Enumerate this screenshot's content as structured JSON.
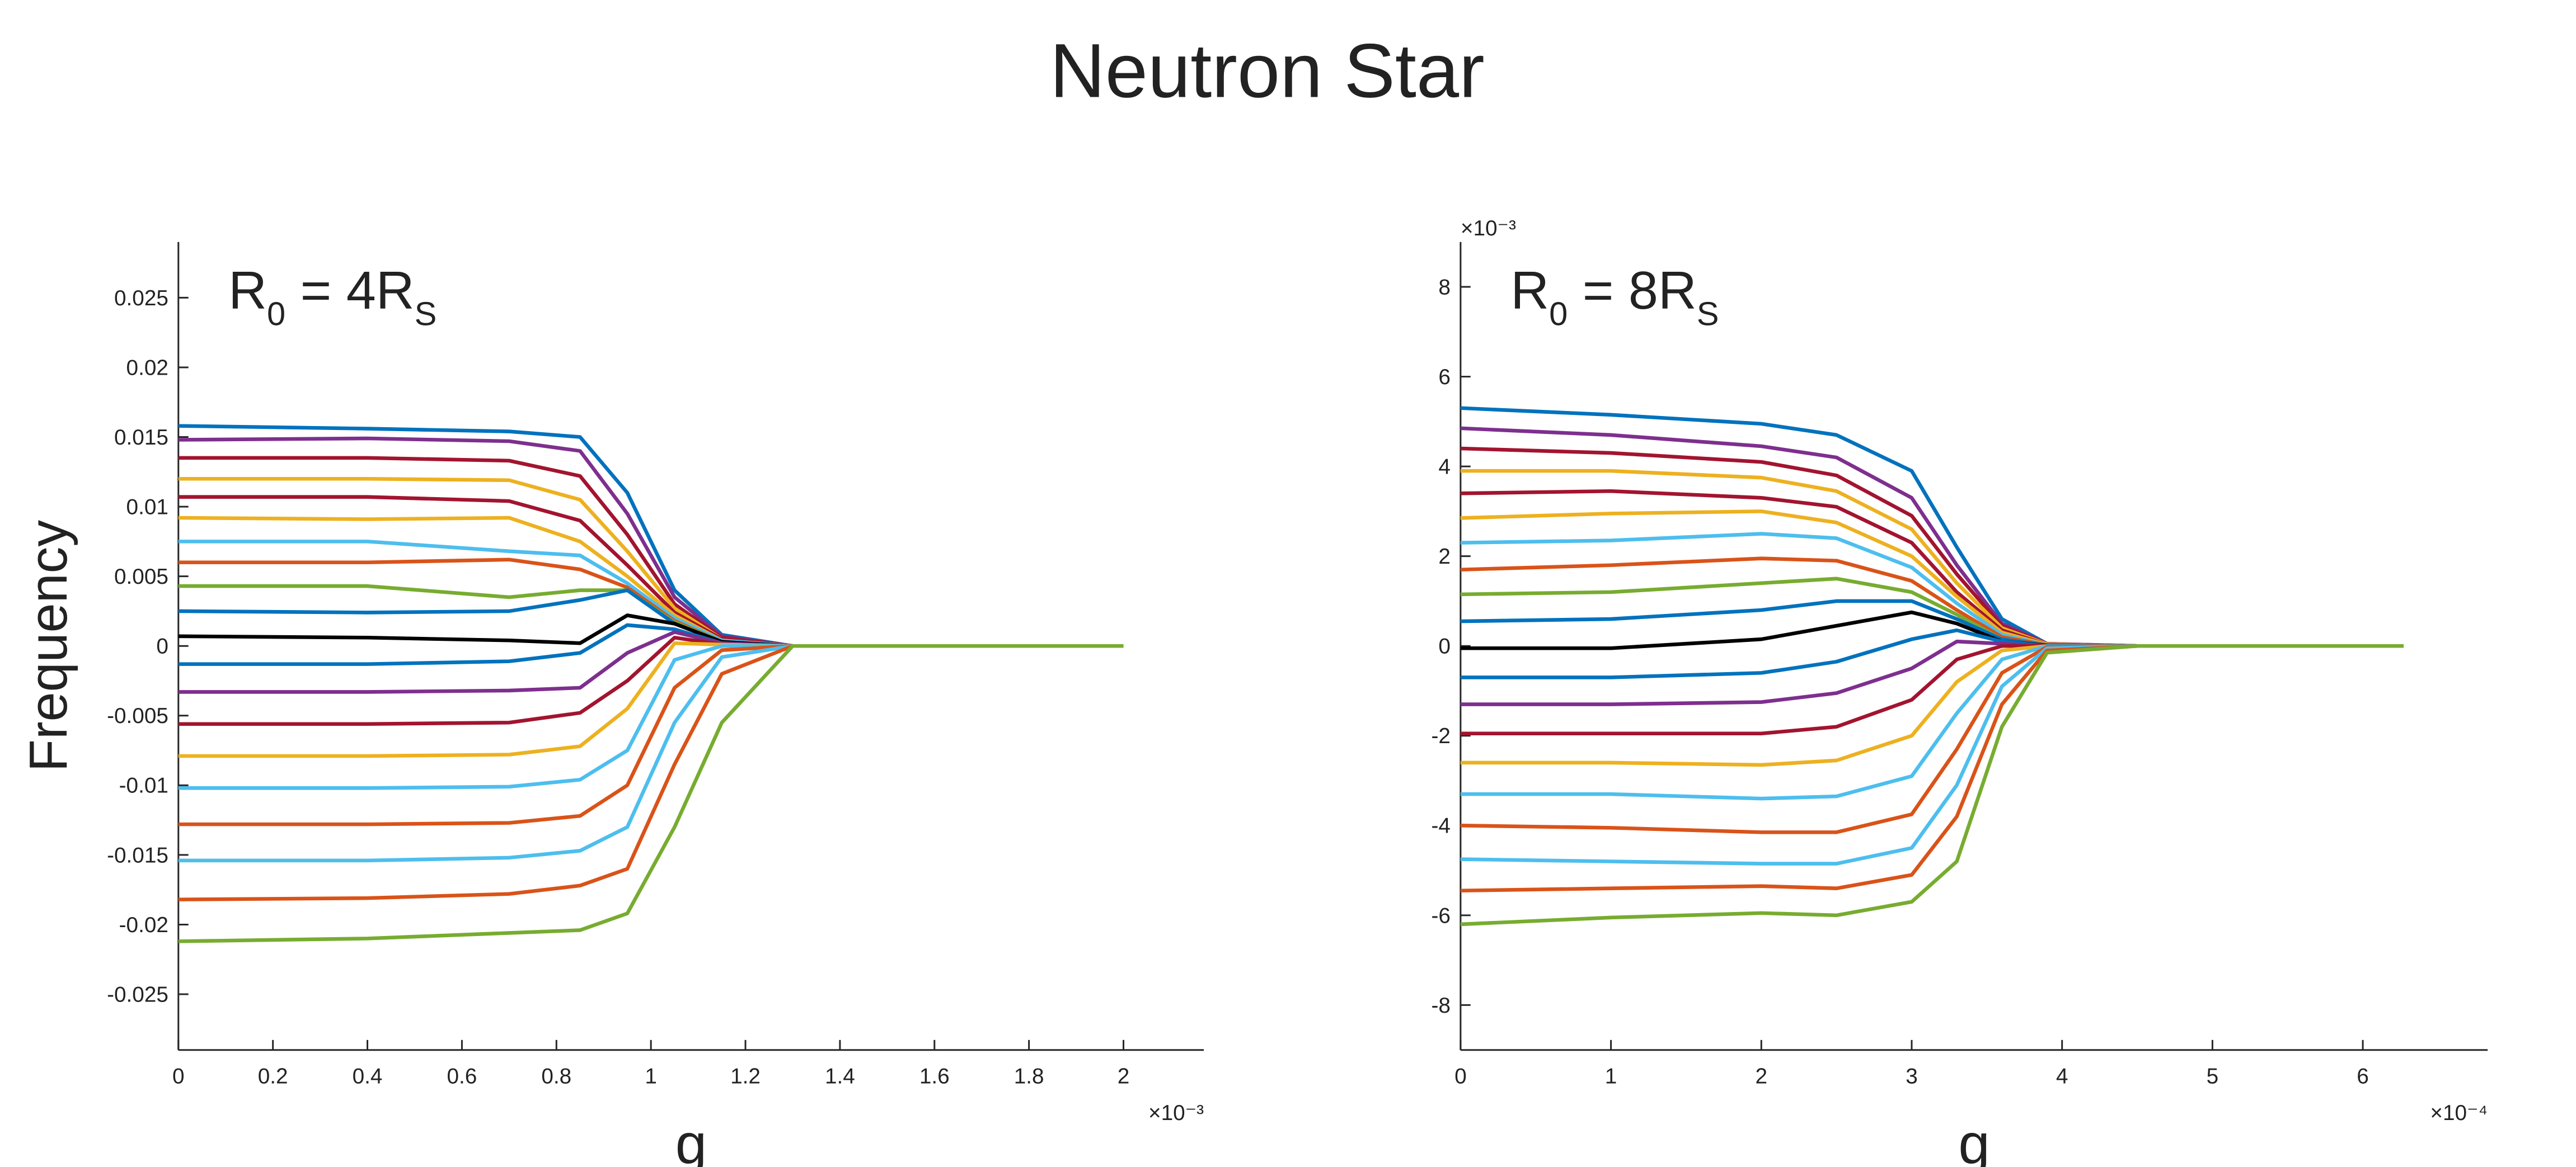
{
  "title": "Neutron Star",
  "chart_data": [
    {
      "type": "line",
      "ylabel": "Frequency",
      "xlabel": "g",
      "annotation": [
        "R",
        "0",
        " = 4R",
        "S"
      ],
      "x_exponent": "×10⁻³",
      "xlim": [
        0,
        2.17
      ],
      "xticks": [
        0,
        0.2,
        0.4,
        0.6,
        0.8,
        1,
        1.2,
        1.4,
        1.6,
        1.8,
        2
      ],
      "ylim": [
        -0.029,
        0.029
      ],
      "yticks": [
        -0.025,
        -0.02,
        -0.015,
        -0.01,
        -0.005,
        0,
        0.005,
        0.01,
        0.015,
        0.02,
        0.025
      ],
      "grid": false,
      "x": [
        0,
        0.4,
        0.7,
        0.85,
        0.95,
        1.05,
        1.15,
        1.3,
        1.6,
        2.0
      ],
      "series": [
        {
          "color": "#0072BD",
          "values": [
            0.0158,
            0.0156,
            0.0154,
            0.015,
            0.011,
            0.004,
            0.0008,
            0,
            0,
            0
          ]
        },
        {
          "color": "#7E2F8E",
          "values": [
            0.0148,
            0.0149,
            0.0147,
            0.014,
            0.0095,
            0.0035,
            0.0007,
            0,
            0,
            0
          ]
        },
        {
          "color": "#A2142F",
          "values": [
            0.0135,
            0.0135,
            0.0133,
            0.0122,
            0.008,
            0.003,
            0.0006,
            0,
            0,
            0
          ]
        },
        {
          "color": "#EDB120",
          "values": [
            0.012,
            0.012,
            0.0119,
            0.0105,
            0.0068,
            0.0027,
            0.0005,
            0,
            0,
            0
          ]
        },
        {
          "color": "#A2142F",
          "values": [
            0.0107,
            0.0107,
            0.0104,
            0.009,
            0.0058,
            0.0024,
            0.0005,
            0,
            0,
            0
          ]
        },
        {
          "color": "#EDB120",
          "values": [
            0.0092,
            0.0091,
            0.0092,
            0.0075,
            0.005,
            0.0022,
            0.0004,
            0,
            0,
            0
          ]
        },
        {
          "color": "#4DBEEE",
          "values": [
            0.0075,
            0.0075,
            0.0068,
            0.0065,
            0.0045,
            0.002,
            0.0004,
            0,
            0,
            0
          ]
        },
        {
          "color": "#D95319",
          "values": [
            0.006,
            0.006,
            0.0062,
            0.0055,
            0.0042,
            0.0018,
            0.0003,
            0,
            0,
            0
          ]
        },
        {
          "color": "#77AC30",
          "values": [
            0.0043,
            0.0043,
            0.0035,
            0.004,
            0.004,
            0.0017,
            0.0003,
            0,
            0,
            0
          ]
        },
        {
          "color": "#0072BD",
          "values": [
            0.0025,
            0.0024,
            0.0025,
            0.0033,
            0.004,
            0.0016,
            0.0003,
            0,
            0,
            0
          ]
        },
        {
          "color": "#000000",
          "values": [
            0.0007,
            0.0006,
            0.0004,
            0.0002,
            0.0022,
            0.0016,
            0.0003,
            0,
            0,
            0
          ]
        },
        {
          "color": "#0072BD",
          "values": [
            -0.0013,
            -0.0013,
            -0.0011,
            -0.0005,
            0.0015,
            0.0012,
            0.0002,
            0,
            0,
            0
          ]
        },
        {
          "color": "#7E2F8E",
          "values": [
            -0.0033,
            -0.0033,
            -0.0032,
            -0.003,
            -0.0005,
            0.001,
            0.0002,
            0,
            0,
            0
          ]
        },
        {
          "color": "#A2142F",
          "values": [
            -0.0056,
            -0.0056,
            -0.0055,
            -0.0048,
            -0.0025,
            0.0006,
            0.0001,
            0,
            0,
            0
          ]
        },
        {
          "color": "#EDB120",
          "values": [
            -0.0079,
            -0.0079,
            -0.0078,
            -0.0072,
            -0.0045,
            0.0002,
            0.0001,
            0,
            0,
            0
          ]
        },
        {
          "color": "#4DBEEE",
          "values": [
            -0.0102,
            -0.0102,
            -0.0101,
            -0.0096,
            -0.0075,
            -0.001,
            0,
            0,
            0,
            0
          ]
        },
        {
          "color": "#D95319",
          "values": [
            -0.0128,
            -0.0128,
            -0.0127,
            -0.0122,
            -0.01,
            -0.003,
            -0.0003,
            0,
            0,
            0
          ]
        },
        {
          "color": "#4DBEEE",
          "values": [
            -0.0154,
            -0.0154,
            -0.0152,
            -0.0147,
            -0.013,
            -0.0055,
            -0.0008,
            0,
            0,
            0
          ]
        },
        {
          "color": "#D95319",
          "values": [
            -0.0182,
            -0.0181,
            -0.0178,
            -0.0172,
            -0.016,
            -0.0085,
            -0.002,
            0,
            0,
            0
          ]
        },
        {
          "color": "#77AC30",
          "values": [
            -0.0212,
            -0.021,
            -0.0206,
            -0.0204,
            -0.0192,
            -0.013,
            -0.0055,
            0,
            0,
            0
          ]
        }
      ]
    },
    {
      "type": "line",
      "xlabel": "g",
      "annotation": [
        "R",
        "0",
        " = 8R",
        "S"
      ],
      "x_exponent": "×10⁻⁴",
      "y_exponent": "×10⁻³",
      "xlim": [
        0,
        6.83
      ],
      "xticks": [
        0,
        1,
        2,
        3,
        4,
        5,
        6
      ],
      "ylim": [
        -9,
        9
      ],
      "yticks": [
        -8,
        -6,
        -4,
        -2,
        0,
        2,
        4,
        6,
        8
      ],
      "grid": false,
      "x": [
        0,
        1,
        2,
        2.5,
        3,
        3.3,
        3.6,
        3.9,
        4.5,
        6.27
      ],
      "series": [
        {
          "color": "#0072BD",
          "values": [
            5.3,
            5.15,
            4.95,
            4.7,
            3.9,
            2.2,
            0.6,
            0.05,
            0,
            0
          ]
        },
        {
          "color": "#7E2F8E",
          "values": [
            4.85,
            4.7,
            4.45,
            4.2,
            3.3,
            1.8,
            0.5,
            0.05,
            0,
            0
          ]
        },
        {
          "color": "#A2142F",
          "values": [
            4.4,
            4.3,
            4.1,
            3.8,
            2.9,
            1.6,
            0.45,
            0.04,
            0,
            0
          ]
        },
        {
          "color": "#EDB120",
          "values": [
            3.9,
            3.9,
            3.75,
            3.45,
            2.6,
            1.4,
            0.4,
            0.04,
            0,
            0
          ]
        },
        {
          "color": "#A2142F",
          "values": [
            3.4,
            3.45,
            3.3,
            3.1,
            2.3,
            1.2,
            0.35,
            0.03,
            0,
            0
          ]
        },
        {
          "color": "#EDB120",
          "values": [
            2.85,
            2.95,
            3.0,
            2.75,
            2.0,
            1.1,
            0.3,
            0.03,
            0,
            0
          ]
        },
        {
          "color": "#4DBEEE",
          "values": [
            2.3,
            2.35,
            2.5,
            2.4,
            1.75,
            0.95,
            0.25,
            0.02,
            0,
            0
          ]
        },
        {
          "color": "#D95319",
          "values": [
            1.7,
            1.8,
            1.95,
            1.9,
            1.45,
            0.8,
            0.2,
            0.02,
            0,
            0
          ]
        },
        {
          "color": "#77AC30",
          "values": [
            1.15,
            1.2,
            1.4,
            1.5,
            1.2,
            0.7,
            0.15,
            0.01,
            0,
            0
          ]
        },
        {
          "color": "#0072BD",
          "values": [
            0.55,
            0.6,
            0.8,
            1.0,
            1.0,
            0.6,
            0.15,
            0.01,
            0,
            0
          ]
        },
        {
          "color": "#000000",
          "values": [
            -0.05,
            -0.05,
            0.15,
            0.45,
            0.75,
            0.5,
            0.1,
            0.01,
            0,
            0
          ]
        },
        {
          "color": "#0072BD",
          "values": [
            -0.7,
            -0.7,
            -0.6,
            -0.35,
            0.15,
            0.35,
            0.1,
            0,
            0,
            0
          ]
        },
        {
          "color": "#7E2F8E",
          "values": [
            -1.3,
            -1.3,
            -1.25,
            -1.05,
            -0.5,
            0.1,
            0.05,
            0,
            0,
            0
          ]
        },
        {
          "color": "#A2142F",
          "values": [
            -1.95,
            -1.95,
            -1.95,
            -1.8,
            -1.2,
            -0.3,
            0,
            0,
            0,
            0
          ]
        },
        {
          "color": "#EDB120",
          "values": [
            -2.6,
            -2.6,
            -2.65,
            -2.55,
            -2.0,
            -0.8,
            -0.1,
            0,
            0,
            0
          ]
        },
        {
          "color": "#4DBEEE",
          "values": [
            -3.3,
            -3.3,
            -3.4,
            -3.35,
            -2.9,
            -1.5,
            -0.3,
            0,
            0,
            0
          ]
        },
        {
          "color": "#D95319",
          "values": [
            -4.0,
            -4.05,
            -4.15,
            -4.15,
            -3.75,
            -2.3,
            -0.6,
            -0.02,
            0,
            0
          ]
        },
        {
          "color": "#4DBEEE",
          "values": [
            -4.75,
            -4.8,
            -4.85,
            -4.85,
            -4.5,
            -3.1,
            -0.9,
            -0.05,
            0,
            0
          ]
        },
        {
          "color": "#D95319",
          "values": [
            -5.45,
            -5.4,
            -5.35,
            -5.4,
            -5.1,
            -3.8,
            -1.3,
            -0.1,
            0,
            0
          ]
        },
        {
          "color": "#77AC30",
          "values": [
            -6.2,
            -6.05,
            -5.95,
            -6.0,
            -5.7,
            -4.8,
            -1.8,
            -0.15,
            0,
            0
          ]
        }
      ]
    }
  ]
}
